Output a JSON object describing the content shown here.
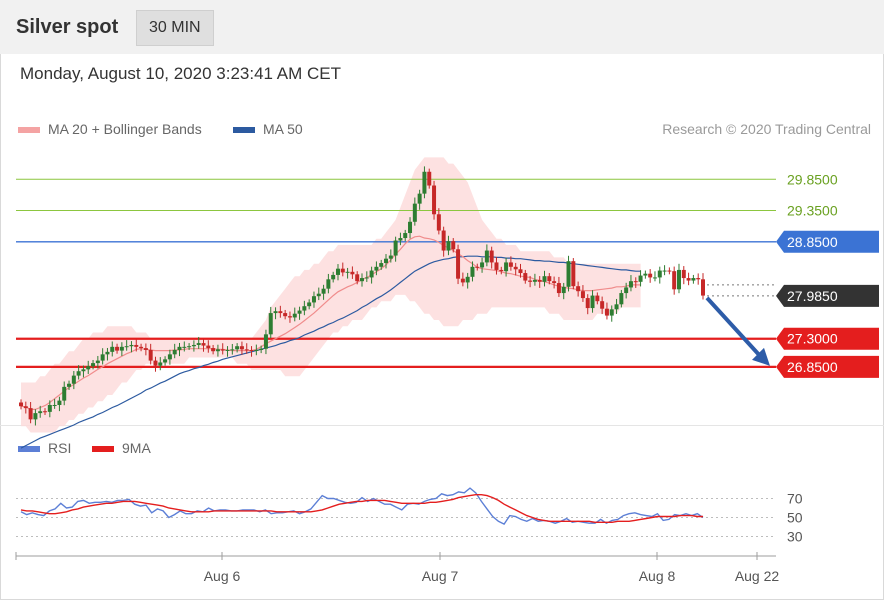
{
  "header": {
    "instrument": "Silver spot",
    "interval": "30 MIN"
  },
  "datetime": "Monday, August 10, 2020 3:23:41 AM CET",
  "legend": {
    "bollinger": "MA 20 + Bollinger Bands",
    "ma50": "MA 50",
    "credit": "Research © 2020 Trading Central"
  },
  "rsi_legend": {
    "rsi": "RSI",
    "ma9": "9MA"
  },
  "colors": {
    "bollinger": "#f08c8c",
    "band_fill": "#fdd9d9",
    "ma50": "#2c5aa0",
    "resistance_green": "#8cc63f",
    "pivot_blue": "#3b73d4",
    "support_red": "#e41e1e",
    "last_price": "#333333",
    "rsi": "#5c7fd6",
    "rsi_ma": "#e41e1e",
    "arrow": "#2d5ca8"
  },
  "chart_data": [
    {
      "type": "candlestick",
      "title": "Silver spot",
      "interval": "30 MIN",
      "x_ticks": [
        "Aug 6",
        "Aug 7",
        "Aug 8",
        "Aug 22"
      ],
      "ylim": [
        26.0,
        30.35
      ],
      "last_price": "27.9850",
      "levels": [
        {
          "label": "29.8500",
          "value": 29.85,
          "kind": "resistance",
          "color": "#8cc63f"
        },
        {
          "label": "29.3500",
          "value": 29.35,
          "kind": "resistance",
          "color": "#8cc63f"
        },
        {
          "label": "28.8500",
          "value": 28.85,
          "kind": "pivot",
          "color": "#3b73d4"
        },
        {
          "label": "27.3000",
          "value": 27.3,
          "kind": "support",
          "color": "#e41e1e"
        },
        {
          "label": "26.8500",
          "value": 26.85,
          "kind": "support",
          "color": "#e41e1e"
        }
      ],
      "close": [
        26.22,
        26.19,
        26.01,
        26.11,
        26.14,
        26.13,
        26.24,
        26.24,
        26.31,
        26.53,
        26.58,
        26.71,
        26.78,
        26.81,
        26.86,
        26.91,
        26.95,
        27.05,
        27.09,
        27.17,
        27.11,
        27.17,
        27.18,
        27.2,
        27.17,
        27.15,
        27.12,
        26.95,
        26.87,
        26.92,
        26.97,
        27.05,
        27.12,
        27.17,
        27.17,
        27.18,
        27.2,
        27.23,
        27.19,
        27.15,
        27.1,
        27.13,
        27.11,
        27.12,
        27.13,
        27.18,
        27.13,
        27.12,
        27.11,
        27.12,
        27.14,
        27.37,
        27.71,
        27.74,
        27.71,
        27.66,
        27.64,
        27.7,
        27.75,
        27.82,
        27.88,
        27.98,
        28.02,
        28.1,
        28.25,
        28.32,
        28.42,
        28.36,
        28.37,
        28.33,
        28.22,
        28.27,
        28.28,
        28.39,
        28.45,
        28.51,
        28.58,
        28.63,
        28.87,
        28.91,
        28.99,
        29.17,
        29.46,
        29.62,
        29.97,
        29.75,
        29.29,
        29.03,
        28.71,
        28.86,
        28.73,
        28.26,
        28.2,
        28.29,
        28.45,
        28.44,
        28.52,
        28.71,
        28.52,
        28.4,
        28.38,
        28.52,
        28.45,
        28.41,
        28.35,
        28.23,
        28.21,
        28.24,
        28.21,
        28.3,
        28.22,
        28.19,
        28.03,
        28.13,
        28.54,
        28.14,
        28.06,
        27.95,
        27.79,
        27.99,
        27.9,
        27.78,
        27.67,
        27.77,
        27.85,
        28.03,
        28.12,
        28.22,
        28.21,
        28.31,
        28.34,
        28.28,
        28.28,
        28.39,
        28.39,
        28.38,
        28.09,
        28.4,
        28.27,
        28.23,
        28.27,
        28.25,
        27.99
      ],
      "ma20": [
        26.22,
        26.21,
        26.17,
        26.17,
        26.2,
        26.23,
        26.28,
        26.34,
        26.4,
        26.46,
        26.52,
        26.57,
        26.62,
        26.67,
        26.71,
        26.76,
        26.81,
        26.85,
        26.9,
        26.94,
        26.98,
        27.02,
        27.06,
        27.09,
        27.13,
        27.14,
        27.13,
        27.12,
        27.11,
        27.11,
        27.11,
        27.11,
        27.12,
        27.12,
        27.13,
        27.14,
        27.14,
        27.14,
        27.14,
        27.14,
        27.14,
        27.13,
        27.13,
        27.12,
        27.11,
        27.11,
        27.11,
        27.11,
        27.11,
        27.13,
        27.17,
        27.22,
        27.26,
        27.3,
        27.34,
        27.38,
        27.43,
        27.48,
        27.53,
        27.59,
        27.65,
        27.71,
        27.78,
        27.85,
        27.92,
        27.99,
        28.05,
        28.09,
        28.13,
        28.16,
        28.2,
        28.24,
        28.28,
        28.32,
        28.37,
        28.42,
        28.48,
        28.56,
        28.65,
        28.73,
        28.82,
        28.89,
        28.93,
        28.94,
        28.91,
        28.9,
        28.88,
        28.84,
        28.79,
        28.75,
        28.71,
        28.66,
        28.61,
        28.55,
        28.5,
        28.44,
        28.42,
        28.41,
        28.4,
        28.39,
        28.37,
        28.35,
        28.34,
        28.32,
        28.3,
        28.29,
        28.28,
        28.25,
        28.23,
        28.21,
        28.19,
        28.16,
        28.14,
        28.12,
        28.11,
        28.1,
        28.08,
        28.07,
        28.07,
        28.07,
        28.08,
        28.09,
        28.1,
        28.11,
        28.13,
        28.13,
        28.14,
        28.16,
        28.16,
        28.16
      ],
      "ma50": [
        25.55,
        25.59,
        25.63,
        25.67,
        25.71,
        25.74,
        25.77,
        25.8,
        25.83,
        25.86,
        25.89,
        25.92,
        25.96,
        25.99,
        26.02,
        26.05,
        26.09,
        26.12,
        26.16,
        26.2,
        26.23,
        26.27,
        26.31,
        26.35,
        26.39,
        26.43,
        26.48,
        26.51,
        26.55,
        26.59,
        26.62,
        26.66,
        26.7,
        26.74,
        26.77,
        26.79,
        26.82,
        26.84,
        26.87,
        26.89,
        26.92,
        26.94,
        26.97,
        26.99,
        27.01,
        27.03,
        27.05,
        27.07,
        27.09,
        27.11,
        27.13,
        27.15,
        27.17,
        27.19,
        27.22,
        27.24,
        27.27,
        27.29,
        27.32,
        27.36,
        27.39,
        27.42,
        27.46,
        27.49,
        27.53,
        27.56,
        27.6,
        27.63,
        27.67,
        27.71,
        27.75,
        27.8,
        27.84,
        27.89,
        27.94,
        27.98,
        28.03,
        28.08,
        28.14,
        28.2,
        28.26,
        28.32,
        28.38,
        28.42,
        28.46,
        28.5,
        28.53,
        28.55,
        28.57,
        28.58,
        28.6,
        28.61,
        28.61,
        28.62,
        28.62,
        28.62,
        28.61,
        28.61,
        28.61,
        28.6,
        28.6,
        28.59,
        28.59,
        28.58,
        28.58,
        28.57,
        28.56,
        28.55,
        28.55,
        28.54,
        28.54,
        28.53,
        28.52,
        28.52,
        28.51,
        28.5,
        28.49,
        28.48,
        28.47,
        28.46,
        28.45,
        28.44,
        28.43,
        28.42,
        28.41,
        28.4,
        28.4,
        28.39,
        28.38,
        28.38
      ],
      "band_upper": [
        26.6,
        26.6,
        26.6,
        26.6,
        26.7,
        26.7,
        26.8,
        26.9,
        26.9,
        27.0,
        27.1,
        27.1,
        27.2,
        27.3,
        27.3,
        27.4,
        27.4,
        27.4,
        27.5,
        27.5,
        27.5,
        27.5,
        27.5,
        27.5,
        27.4,
        27.4,
        27.4,
        27.3,
        27.3,
        27.3,
        27.3,
        27.3,
        27.3,
        27.3,
        27.3,
        27.3,
        27.3,
        27.3,
        27.3,
        27.3,
        27.3,
        27.3,
        27.3,
        27.3,
        27.3,
        27.3,
        27.3,
        27.3,
        27.3,
        27.4,
        27.5,
        27.6,
        27.8,
        27.9,
        28.0,
        28.1,
        28.2,
        28.3,
        28.3,
        28.4,
        28.4,
        28.5,
        28.5,
        28.6,
        28.7,
        28.7,
        28.8,
        28.8,
        28.8,
        28.8,
        28.8,
        28.8,
        28.8,
        28.8,
        28.9,
        28.9,
        29.0,
        29.1,
        29.2,
        29.4,
        29.6,
        29.8,
        30.0,
        30.1,
        30.2,
        30.2,
        30.2,
        30.2,
        30.2,
        30.1,
        30.1,
        30.0,
        29.9,
        29.8,
        29.6,
        29.4,
        29.2,
        29.1,
        29.0,
        28.9,
        28.9,
        28.8,
        28.8,
        28.8,
        28.7,
        28.7,
        28.7,
        28.7,
        28.7,
        28.7,
        28.7,
        28.6,
        28.6,
        28.6,
        28.5,
        28.5,
        28.5,
        28.5,
        28.5,
        28.5,
        28.5,
        28.5,
        28.5,
        28.5,
        28.5,
        28.5,
        28.5,
        28.5,
        28.5,
        28.5
      ],
      "band_lower": [
        25.9,
        25.9,
        25.8,
        25.8,
        25.8,
        25.8,
        25.8,
        25.8,
        25.9,
        25.9,
        26.0,
        26.0,
        26.1,
        26.1,
        26.2,
        26.2,
        26.3,
        26.3,
        26.4,
        26.4,
        26.5,
        26.6,
        26.6,
        26.7,
        26.8,
        26.8,
        26.9,
        26.9,
        26.9,
        26.9,
        26.9,
        26.9,
        26.9,
        26.9,
        26.9,
        27.0,
        27.0,
        27.0,
        27.0,
        27.0,
        27.0,
        27.0,
        27.0,
        27.0,
        27.0,
        26.9,
        26.9,
        26.9,
        26.8,
        26.8,
        26.8,
        26.8,
        26.8,
        26.8,
        26.8,
        26.7,
        26.7,
        26.7,
        26.7,
        26.8,
        26.9,
        27.0,
        27.1,
        27.2,
        27.3,
        27.4,
        27.4,
        27.5,
        27.5,
        27.6,
        27.6,
        27.6,
        27.7,
        27.8,
        27.8,
        27.9,
        27.9,
        27.9,
        28.0,
        28.0,
        28.0,
        27.9,
        27.9,
        27.8,
        27.7,
        27.7,
        27.6,
        27.6,
        27.5,
        27.5,
        27.5,
        27.5,
        27.6,
        27.6,
        27.6,
        27.7,
        27.7,
        27.7,
        27.8,
        27.8,
        27.8,
        27.8,
        27.8,
        27.8,
        27.8,
        27.8,
        27.8,
        27.8,
        27.8,
        27.8,
        27.7,
        27.7,
        27.7,
        27.6,
        27.6,
        27.6,
        27.6,
        27.6,
        27.6,
        27.6,
        27.7,
        27.7,
        27.7,
        27.7,
        27.7,
        27.8,
        27.8,
        27.8,
        27.8,
        27.8
      ]
    },
    {
      "type": "line",
      "name": "RSI",
      "ylim": [
        20,
        100
      ],
      "y_ticks": [
        "70",
        "50",
        "30"
      ],
      "rsi": [
        56,
        53,
        55,
        53,
        52,
        57,
        59,
        65,
        60,
        61,
        67,
        68,
        65,
        66,
        66,
        67,
        66,
        68,
        68,
        69,
        64,
        62,
        63,
        55,
        59,
        57,
        50,
        53,
        57,
        54,
        54,
        57,
        56,
        60,
        57,
        58,
        58,
        57,
        57,
        58,
        58,
        58,
        56,
        58,
        54,
        55,
        55,
        56,
        57,
        54,
        56,
        59,
        66,
        73,
        70,
        70,
        68,
        66,
        65,
        66,
        71,
        67,
        70,
        67,
        64,
        64,
        61,
        58,
        64,
        65,
        64,
        67,
        69,
        70,
        75,
        73,
        74,
        77,
        76,
        81,
        76,
        67,
        59,
        51,
        46,
        43,
        52,
        51,
        48,
        46,
        49,
        46,
        47,
        46,
        44,
        46,
        49,
        45,
        46,
        45,
        44,
        44,
        48,
        44,
        47,
        48,
        52,
        54,
        55,
        53,
        52,
        51,
        54,
        47,
        48,
        53,
        52,
        54,
        52,
        54,
        50
      ],
      "ma9": [
        58,
        57,
        57,
        56,
        55,
        54,
        54,
        55,
        56,
        58,
        59,
        61,
        62,
        63,
        64,
        65,
        65,
        66,
        67,
        67,
        67,
        66,
        65,
        64,
        63,
        62,
        60,
        59,
        58,
        57,
        56,
        56,
        56,
        56,
        57,
        57,
        57,
        57,
        57,
        57,
        57,
        57,
        57,
        57,
        57,
        56,
        56,
        56,
        56,
        56,
        56,
        56,
        57,
        58,
        60,
        62,
        64,
        65,
        66,
        67,
        67,
        68,
        68,
        68,
        68,
        67,
        66,
        65,
        65,
        65,
        65,
        65,
        66,
        66,
        67,
        68,
        69,
        71,
        72,
        73,
        74,
        74,
        73,
        71,
        68,
        64,
        61,
        58,
        55,
        52,
        50,
        48,
        47,
        46,
        46,
        46,
        46,
        46,
        46,
        46,
        46,
        45,
        45,
        45,
        45,
        46,
        46,
        46,
        47,
        48,
        49,
        50,
        51,
        51,
        51,
        51,
        52,
        52,
        52,
        51,
        51
      ]
    }
  ]
}
